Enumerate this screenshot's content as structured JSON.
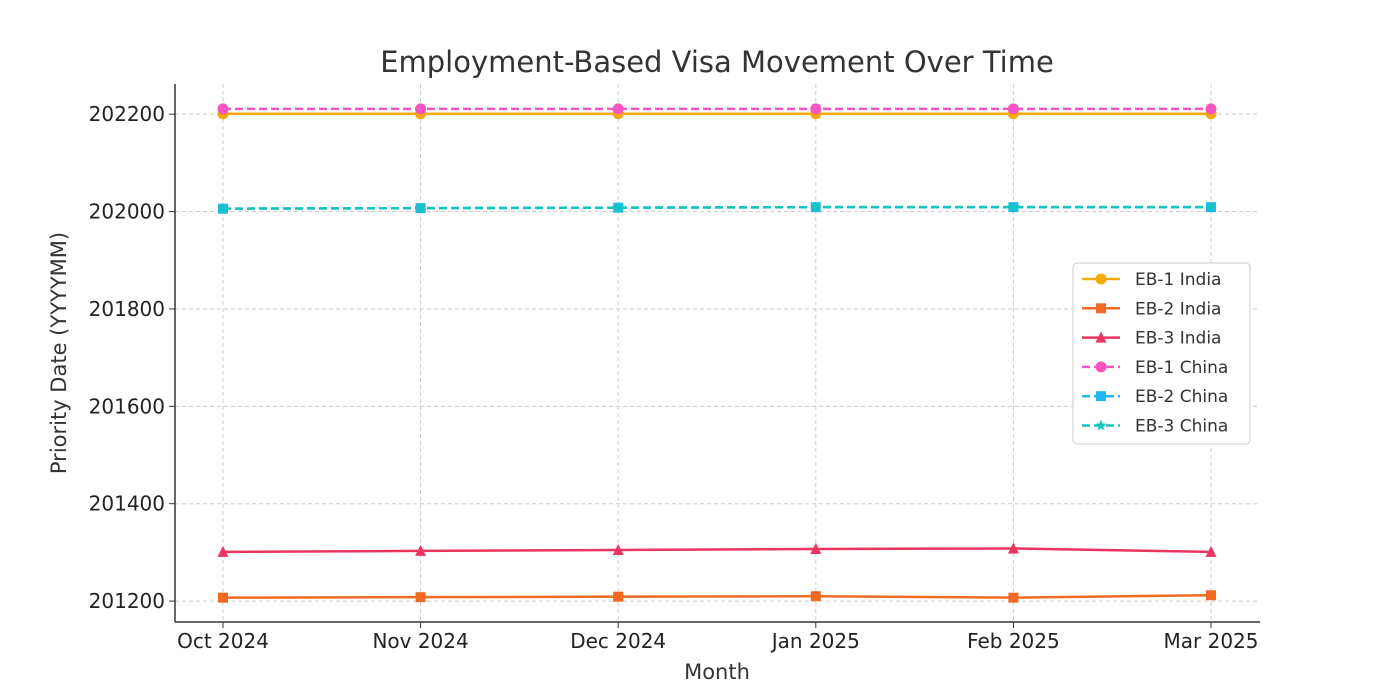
{
  "chart_data": {
    "type": "line",
    "title": "Employment-Based Visa Movement Over Time",
    "xlabel": "Month",
    "ylabel": "Priority Date (YYYYMM)",
    "categories": [
      "Oct 2024",
      "Nov 2024",
      "Dec 2024",
      "Jan 2025",
      "Feb 2025",
      "Mar 2025"
    ],
    "ylim": [
      201157,
      202262
    ],
    "yticks": [
      201200,
      201400,
      201600,
      201800,
      202000,
      202200
    ],
    "grid": true,
    "legend_position": "center-right",
    "series": [
      {
        "name": "EB-1 India",
        "color": "#f5a90f",
        "marker": "circle",
        "dash": false,
        "values": [
          202201,
          202201,
          202201,
          202201,
          202201,
          202201
        ]
      },
      {
        "name": "EB-2 India",
        "color": "#f06a24",
        "marker": "square",
        "dash": false,
        "values": [
          201207,
          201208,
          201209,
          201210,
          201207,
          201212
        ]
      },
      {
        "name": "EB-3 India",
        "color": "#ea3560",
        "marker": "triangle",
        "dash": false,
        "values": [
          201301,
          201303,
          201305,
          201307,
          201308,
          201301
        ]
      },
      {
        "name": "EB-1 China",
        "color": "#f455c0",
        "marker": "circle",
        "dash": true,
        "values": [
          202211,
          202211,
          202211,
          202211,
          202211,
          202211
        ]
      },
      {
        "name": "EB-2 China",
        "color": "#22b8ec",
        "marker": "square",
        "dash": true,
        "values": [
          202006,
          202007,
          202008,
          202009,
          202009,
          202009
        ]
      },
      {
        "name": "EB-3 China",
        "color": "#14c4c0",
        "marker": "star",
        "dash": true,
        "values": [
          202006,
          202007,
          202008,
          202009,
          202009,
          202009
        ]
      }
    ]
  }
}
